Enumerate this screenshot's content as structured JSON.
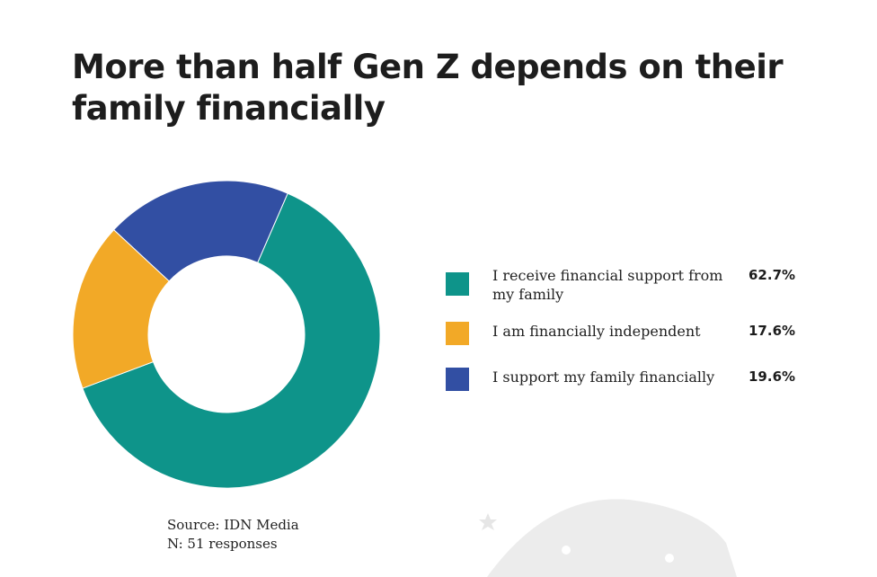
{
  "header": {
    "title": "More than half Gen Z depends on their family financially"
  },
  "chart_data": {
    "type": "pie",
    "series": [
      {
        "name": "I receive financial support from my family",
        "value": 62.7,
        "label": "62.7%",
        "color": "#0e948a"
      },
      {
        "name": "I am financially independent",
        "value": 17.6,
        "label": "17.6%",
        "color": "#f2a927"
      },
      {
        "name": "I support my family financially",
        "value": 19.6,
        "label": "19.6%",
        "color": "#324fa3"
      }
    ],
    "legend_position": "right"
  },
  "footer": {
    "source": "Source: IDN Media",
    "sample": "N: 51 responses"
  },
  "decoration": {
    "color": "#ececec"
  }
}
